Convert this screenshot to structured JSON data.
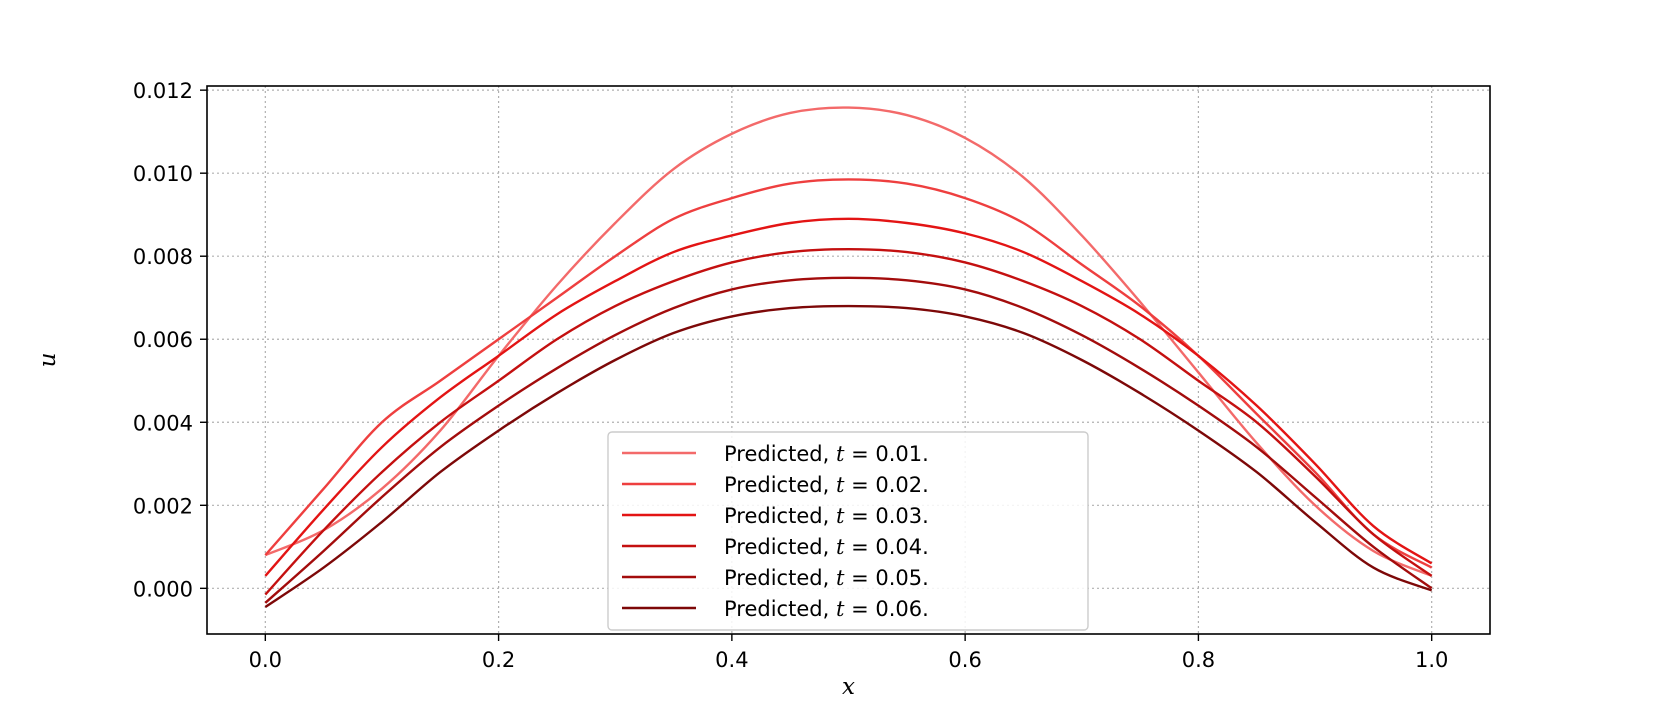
{
  "chart_data": {
    "type": "line",
    "title": "",
    "xlabel": "x",
    "ylabel": "u",
    "xlim": [
      -0.05,
      1.05
    ],
    "ylim": [
      -0.0011,
      0.0121
    ],
    "xticks": [
      0.0,
      0.2,
      0.4,
      0.6,
      0.8,
      1.0
    ],
    "xtick_labels": [
      "0.0",
      "0.2",
      "0.4",
      "0.6",
      "0.8",
      "1.0"
    ],
    "yticks": [
      0.0,
      0.002,
      0.004,
      0.006,
      0.008,
      0.01,
      0.012
    ],
    "ytick_labels": [
      "0.000",
      "0.002",
      "0.004",
      "0.006",
      "0.008",
      "0.010",
      "0.012"
    ],
    "grid": true,
    "legend_position": "lower-center",
    "x": [
      0.0,
      0.05,
      0.1,
      0.15,
      0.2,
      0.25,
      0.3,
      0.35,
      0.4,
      0.45,
      0.5,
      0.55,
      0.6,
      0.65,
      0.7,
      0.75,
      0.8,
      0.85,
      0.9,
      0.95,
      1.0
    ],
    "series": [
      {
        "name": "Predicted, t = 0.01.",
        "t": "0.01",
        "color": "#f36a6a",
        "values": [
          0.0008,
          0.0014,
          0.0024,
          0.0038,
          0.0056,
          0.0073,
          0.0088,
          0.0101,
          0.01095,
          0.01145,
          0.01158,
          0.0114,
          0.01085,
          0.0099,
          0.0085,
          0.0069,
          0.0052,
          0.0035,
          0.002,
          0.0009,
          0.0003
        ]
      },
      {
        "name": "Predicted, t = 0.02.",
        "t": "0.02",
        "color": "#ee3f3f",
        "values": [
          0.0008,
          0.0024,
          0.004,
          0.005,
          0.006,
          0.007,
          0.008,
          0.0089,
          0.0094,
          0.00975,
          0.00985,
          0.00975,
          0.0094,
          0.0088,
          0.0078,
          0.0068,
          0.0056,
          0.0042,
          0.0028,
          0.0013,
          0.0005
        ]
      },
      {
        "name": "Predicted, t = 0.03.",
        "t": "0.03",
        "color": "#e31414",
        "values": [
          0.0003,
          0.0019,
          0.0034,
          0.0046,
          0.0056,
          0.0066,
          0.0074,
          0.0081,
          0.0085,
          0.0088,
          0.0089,
          0.0088,
          0.00855,
          0.0081,
          0.0074,
          0.0066,
          0.0056,
          0.0044,
          0.003,
          0.0015,
          0.0006
        ]
      },
      {
        "name": "Predicted, t = 0.04.",
        "t": "0.04",
        "color": "#c41010",
        "values": [
          -0.00015,
          0.0014,
          0.0028,
          0.004,
          0.005,
          0.006,
          0.0068,
          0.0074,
          0.00785,
          0.0081,
          0.00817,
          0.0081,
          0.00785,
          0.0074,
          0.0068,
          0.006,
          0.005,
          0.004,
          0.0027,
          0.0013,
          0.0003
        ]
      },
      {
        "name": "Predicted, t = 0.05.",
        "t": "0.05",
        "color": "#a30c0c",
        "values": [
          -0.00035,
          0.0009,
          0.0022,
          0.0034,
          0.0044,
          0.0053,
          0.0061,
          0.00675,
          0.0072,
          0.00742,
          0.00748,
          0.00742,
          0.0072,
          0.00675,
          0.0061,
          0.0053,
          0.0044,
          0.0034,
          0.0022,
          0.001,
          0.0
        ]
      },
      {
        "name": "Predicted, t = 0.06.",
        "t": "0.06",
        "color": "#7d0808",
        "values": [
          -0.00045,
          0.0005,
          0.0016,
          0.0028,
          0.0038,
          0.0047,
          0.0055,
          0.00615,
          0.00655,
          0.00675,
          0.0068,
          0.00675,
          0.00655,
          0.00615,
          0.0055,
          0.0047,
          0.0038,
          0.0028,
          0.0016,
          0.0005,
          -5e-05
        ]
      }
    ],
    "legend_prefix": "Predicted, ",
    "legend_var": "t",
    "legend_eq": "=",
    "legend_suffix": "."
  }
}
